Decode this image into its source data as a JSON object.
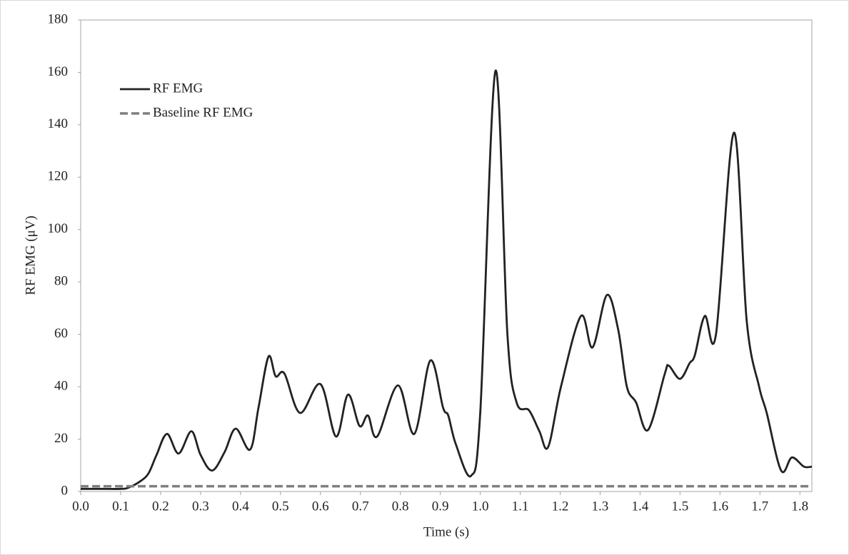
{
  "chart_data": {
    "type": "line",
    "x_label": "Time (s)",
    "y_label": "RF EMG (μV)",
    "x": [
      0,
      0.05,
      0.1,
      0.12,
      0.15,
      0.17,
      0.19,
      0.216,
      0.245,
      0.277,
      0.3,
      0.329,
      0.36,
      0.388,
      0.424,
      0.445,
      0.47,
      0.488,
      0.51,
      0.549,
      0.6,
      0.639,
      0.669,
      0.698,
      0.719,
      0.742,
      0.794,
      0.835,
      0.875,
      0.907,
      0.92,
      0.939,
      0.977,
      1.0,
      1.038,
      1.068,
      1.091,
      1.122,
      1.148,
      1.17,
      1.202,
      1.252,
      1.281,
      1.317,
      1.345,
      1.367,
      1.39,
      1.42,
      1.462,
      1.472,
      1.5,
      1.524,
      1.537,
      1.562,
      1.59,
      1.635,
      1.667,
      1.698,
      1.717,
      1.753,
      1.78,
      1.81,
      1.83
    ],
    "series": [
      {
        "name": "RF EMG",
        "color": "#222222",
        "dash": false,
        "values": [
          1,
          1,
          1,
          1.5,
          4,
          7,
          14,
          22,
          14.5,
          23,
          14,
          8,
          15,
          24,
          16,
          32,
          51.5,
          44,
          45,
          30,
          41,
          21,
          37,
          25,
          29,
          21,
          40.5,
          22,
          50,
          32,
          29,
          18,
          6,
          30,
          160.5,
          60,
          34,
          31,
          23,
          17,
          40,
          67,
          55,
          75,
          62,
          40,
          34,
          23.5,
          45,
          48,
          43,
          49,
          52,
          67,
          60,
          137,
          65,
          40,
          30,
          8,
          13,
          9.5,
          9.5
        ]
      },
      {
        "name": "Baseline RF EMG",
        "color": "#7f7f7f",
        "dash": true,
        "values": [
          2,
          2,
          2,
          2,
          2,
          2,
          2,
          2,
          2,
          2,
          2,
          2,
          2,
          2,
          2,
          2,
          2,
          2,
          2,
          2,
          2,
          2,
          2,
          2,
          2,
          2,
          2,
          2,
          2,
          2,
          2,
          2,
          2,
          2,
          2,
          2,
          2,
          2,
          2,
          2,
          2,
          2,
          2,
          2,
          2,
          2,
          2,
          2,
          2,
          2,
          2,
          2,
          2,
          2,
          2,
          2,
          2,
          2,
          2,
          2,
          2,
          2,
          2
        ]
      }
    ],
    "xlim": [
      0,
      1.83
    ],
    "xticks": [
      {
        "value": 0,
        "label": "0.0"
      },
      0.1,
      0.2,
      0.3,
      0.4,
      0.5,
      0.6,
      0.7,
      0.8,
      0.9,
      {
        "value": 1,
        "label": "1.0"
      },
      1.1,
      1.2,
      1.3,
      1.4,
      1.5,
      1.6,
      1.7,
      1.8
    ],
    "ylim": [
      0,
      180
    ],
    "yticks": [
      0,
      20,
      40,
      60,
      80,
      100,
      120,
      140,
      160,
      180
    ],
    "grid": false,
    "legend": "upper-left"
  }
}
